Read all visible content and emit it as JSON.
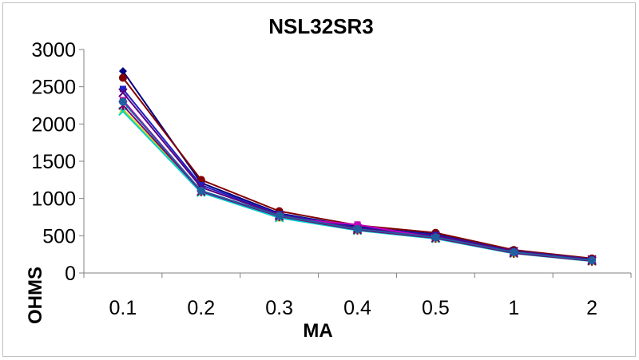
{
  "chart_data": {
    "type": "line",
    "title": "NSL32SR3",
    "xlabel": "MA",
    "ylabel": "OHMS",
    "categories": [
      "0.1",
      "0.2",
      "0.3",
      "0.4",
      "0.5",
      "1",
      "2"
    ],
    "ylim": [
      0,
      3000
    ],
    "yticks": [
      0,
      500,
      1000,
      1500,
      2000,
      2500,
      3000
    ],
    "grid": false,
    "legend": "none",
    "series": [
      {
        "color": "#000080",
        "marker": "diamond",
        "values": [
          2710,
          1210,
          800,
          620,
          520,
          300,
          190
        ]
      },
      {
        "color": "#800000",
        "marker": "circle",
        "values": [
          2620,
          1250,
          830,
          640,
          540,
          310,
          195
        ]
      },
      {
        "color": "#2020c0",
        "marker": "square",
        "values": [
          2470,
          1180,
          790,
          610,
          510,
          295,
          185
        ]
      },
      {
        "color": "#5a0080",
        "marker": "x",
        "values": [
          2420,
          1150,
          780,
          600,
          500,
          290,
          180
        ]
      },
      {
        "color": "#c000c0",
        "marker": "square",
        "values": [
          2320,
          1100,
          740,
          650,
          470,
          270,
          165
        ]
      },
      {
        "color": "#d8d800",
        "marker": "triangle",
        "values": [
          2200,
          1090,
          745,
          575,
          465,
          265,
          160
        ]
      },
      {
        "color": "#00d0d0",
        "marker": "x",
        "values": [
          2170,
          1080,
          740,
          570,
          460,
          262,
          158
        ]
      },
      {
        "color": "#7a0070",
        "marker": "star",
        "values": [
          2250,
          1095,
          760,
          580,
          470,
          268,
          162
        ]
      },
      {
        "color": "#2060a0",
        "marker": "circle",
        "values": [
          2300,
          1105,
          770,
          590,
          480,
          280,
          170
        ]
      }
    ]
  }
}
